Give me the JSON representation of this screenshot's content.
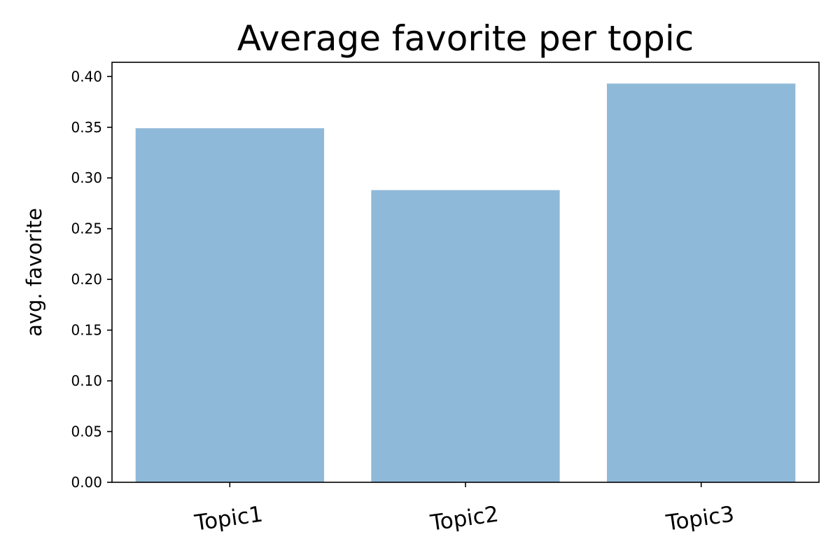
{
  "chart_data": {
    "type": "bar",
    "title": "Average favorite per topic",
    "xlabel": "",
    "ylabel": "avg. favorite",
    "categories": [
      "Topic1",
      "Topic2",
      "Topic3"
    ],
    "values": [
      0.349,
      0.288,
      0.393
    ],
    "ylim": [
      0,
      0.414
    ],
    "yticks": [
      "0.00",
      "0.05",
      "0.10",
      "0.15",
      "0.20",
      "0.25",
      "0.30",
      "0.35",
      "0.40"
    ],
    "ytick_values": [
      0,
      0.05,
      0.1,
      0.15,
      0.2,
      0.25,
      0.3,
      0.35,
      0.4
    ],
    "xtick_rotation_deg": -8,
    "grid": false,
    "legend": "none",
    "bar_color": "#8fb9d9"
  }
}
